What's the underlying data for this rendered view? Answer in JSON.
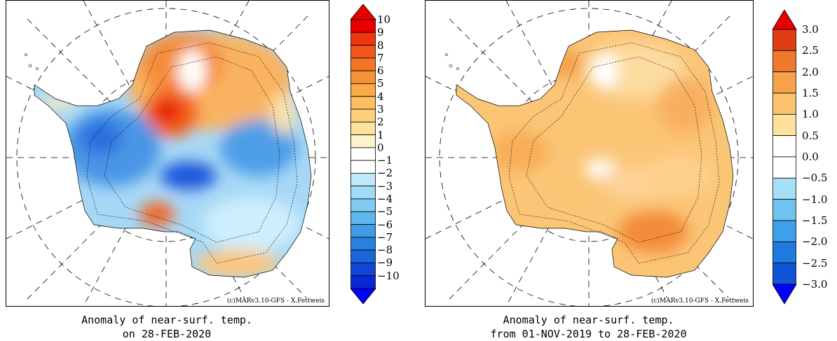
{
  "panels": [
    {
      "id": "left",
      "credit": "(c)MARv3.10-GFS - X.Fettweis",
      "caption_line1": "Anomaly of near-surf. temp.",
      "caption_line2": "on 28-FEB-2020",
      "colorbar": {
        "labels": [
          "10",
          "9",
          "8",
          "7",
          "6",
          "5",
          "4",
          "3",
          "2",
          "1",
          "0",
          "−1",
          "−2",
          "−3",
          "−4",
          "−5",
          "−6",
          "−7",
          "−8",
          "−9",
          "−10"
        ],
        "colors": [
          "#e60000",
          "#f0350f",
          "#f2551a",
          "#f57527",
          "#f79137",
          "#f9a948",
          "#fbbe61",
          "#fdd07a",
          "#fee19c",
          "#fff1c8",
          "#ffffff",
          "#ffffff",
          "#bfe9fb",
          "#9fdcf7",
          "#80ccf2",
          "#5fb6ec",
          "#3f9ce5",
          "#2a82e0",
          "#1c66dc",
          "#1146d8",
          "#0a28d5"
        ],
        "top_arrow_color": "#e60000",
        "bottom_arrow_color": "#0000ff"
      }
    },
    {
      "id": "right",
      "credit": "(c)MARv3.10-GFS - X.Fettweis",
      "caption_line1": "Anomaly of near-surf. temp.",
      "caption_line2": "from 01-NOV-2019 to 28-FEB-2020",
      "colorbar": {
        "labels": [
          "3.0",
          "2.5",
          "2.0",
          "1.5",
          "1.0",
          "0.5",
          "0.0",
          "−0.5",
          "−1.0",
          "−1.5",
          "−2.0",
          "−2.5",
          "−3.0"
        ],
        "colors": [
          "#e23c14",
          "#f07a2c",
          "#f7a24a",
          "#fbc270",
          "#fee19c",
          "#ffffff",
          "#ffffff",
          "#a6e0f8",
          "#6ec3f1",
          "#3ea0e8",
          "#1f79df",
          "#1054d8"
        ],
        "top_arrow_color": "#e80000",
        "bottom_arrow_color": "#0000ff"
      }
    }
  ]
}
